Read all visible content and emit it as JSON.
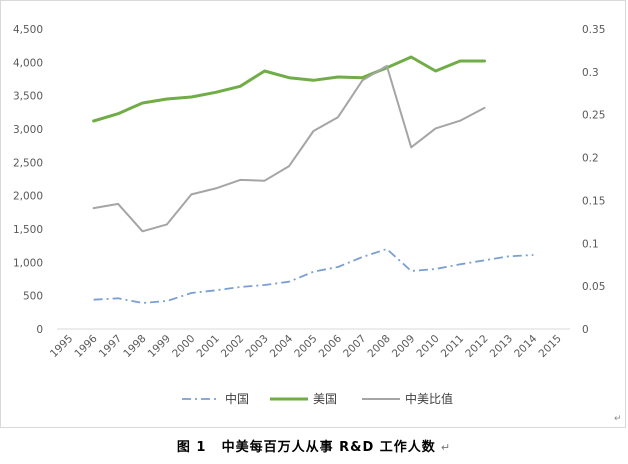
{
  "chart_data": {
    "type": "line",
    "x_categories": [
      "1995",
      "1996",
      "1997",
      "1998",
      "1999",
      "2000",
      "2001",
      "2002",
      "2003",
      "2004",
      "2005",
      "2006",
      "2007",
      "2008",
      "2009",
      "2010",
      "2011",
      "2012",
      "2013",
      "2014",
      "2015"
    ],
    "left_axis": {
      "ticks": [
        "0",
        "500",
        "1,000",
        "1,500",
        "2,000",
        "2,500",
        "3,000",
        "3,500",
        "4,000",
        "4,500"
      ],
      "ylim": [
        0,
        4500
      ]
    },
    "right_axis": {
      "ticks": [
        "0",
        "0.05",
        "0.1",
        "0.15",
        "0.2",
        "0.25",
        "0.3",
        "0.35"
      ],
      "ylim": [
        0,
        0.35
      ]
    },
    "series": [
      {
        "name": "中国",
        "axis": "left",
        "color": "#7a9fd3",
        "dash": "dash-dot",
        "x": [
          "1996",
          "1997",
          "1998",
          "1999",
          "2000",
          "2001",
          "2002",
          "2003",
          "2004",
          "2005",
          "2006",
          "2007",
          "2008",
          "2009",
          "2010",
          "2011",
          "2012",
          "2013",
          "2014"
        ],
        "values": [
          440,
          460,
          390,
          420,
          540,
          580,
          630,
          660,
          710,
          860,
          930,
          1080,
          1200,
          870,
          900,
          970,
          1030,
          1090,
          1110
        ]
      },
      {
        "name": "美国",
        "axis": "left",
        "color": "#70ad47",
        "dash": "solid",
        "x": [
          "1996",
          "1997",
          "1998",
          "1999",
          "2000",
          "2001",
          "2002",
          "2003",
          "2004",
          "2005",
          "2006",
          "2007",
          "2008",
          "2009",
          "2010",
          "2011",
          "2012"
        ],
        "values": [
          3120,
          3230,
          3390,
          3450,
          3480,
          3550,
          3640,
          3870,
          3770,
          3730,
          3780,
          3770,
          3920,
          4080,
          3870,
          4020,
          4020
        ]
      },
      {
        "name": "中美比值",
        "axis": "right",
        "color": "#a5a5a5",
        "dash": "solid",
        "x": [
          "1996",
          "1997",
          "1998",
          "1999",
          "2000",
          "2001",
          "2002",
          "2003",
          "2004",
          "2005",
          "2006",
          "2007",
          "2008",
          "2009",
          "2010",
          "2011",
          "2012"
        ],
        "values": [
          0.141,
          0.146,
          0.114,
          0.122,
          0.157,
          0.164,
          0.174,
          0.173,
          0.19,
          0.231,
          0.247,
          0.29,
          0.307,
          0.212,
          0.234,
          0.243,
          0.258
        ]
      }
    ],
    "legend": [
      "中国",
      "美国",
      "中美比值"
    ],
    "legend_position": "bottom",
    "grid": false
  },
  "caption": {
    "number": "图 1",
    "title": "中美每百万人从事 R&D 工作人数",
    "mark": "↵"
  },
  "corner_mark": "↵"
}
